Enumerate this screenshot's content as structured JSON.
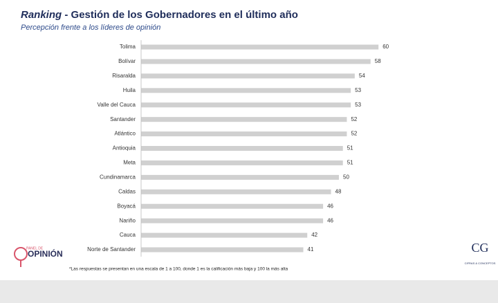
{
  "chart_data": {
    "type": "bar",
    "orientation": "horizontal",
    "title_emphasis": "Ranking",
    "title": "- Gestión de los Gobernadores en el último año",
    "subtitle": "Percepción frente a los líderes de opinión",
    "categories": [
      "Tolima",
      "Bolívar",
      "Risaralda",
      "Huila",
      "Valle del Cauca",
      "Santander",
      "Atlántico",
      "Antioquia",
      "Meta",
      "Cundinamarca",
      "Caldas",
      "Boyacá",
      "Nariño",
      "Cauca",
      "Norte de Santander"
    ],
    "values": [
      60,
      58,
      54,
      53,
      53,
      52,
      52,
      51,
      51,
      50,
      48,
      46,
      46,
      42,
      41
    ],
    "color": "#d0d0d0",
    "footnote": "*Las respuestas se presentan en una escala de 1 a 100, donde 1 es la calificación más baja y 100 la más alta"
  },
  "logos": {
    "left": {
      "top": "PANEL DE",
      "bottom": "OPINIÓN"
    },
    "right": {
      "mark": "CG",
      "name": "CIFRAS & CONCEPTOS"
    }
  }
}
